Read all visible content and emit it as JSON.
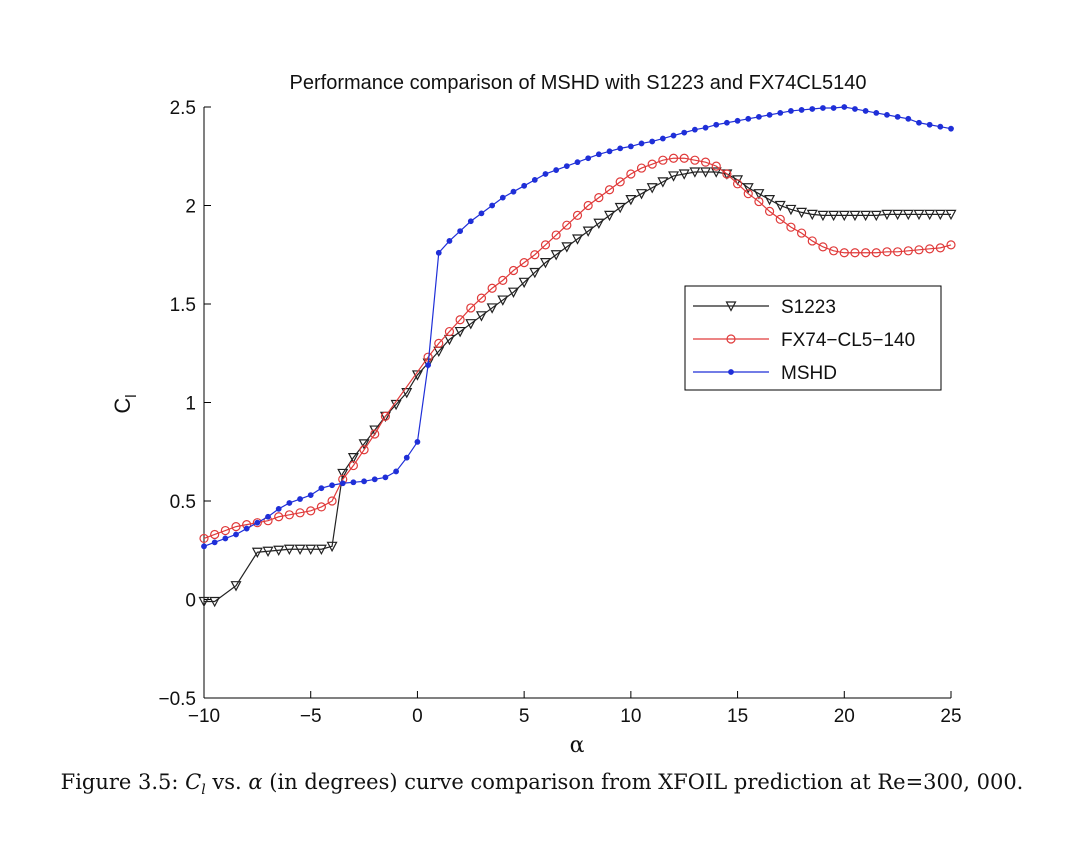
{
  "chart_data": {
    "type": "line",
    "title": "Performance comparison of MSHD with S1223 and FX74CL5140",
    "xlabel": "α",
    "ylabel": "C",
    "ylabel_sub": "l",
    "xlim": [
      -10,
      25
    ],
    "ylim": [
      -0.5,
      2.5
    ],
    "xticks": [
      -10,
      -5,
      0,
      5,
      10,
      15,
      20,
      25
    ],
    "yticks": [
      -0.5,
      0,
      0.5,
      1,
      1.5,
      2,
      2.5
    ],
    "xtick_labels": [
      "−10",
      "−5",
      "0",
      "5",
      "10",
      "15",
      "20",
      "25"
    ],
    "ytick_labels": [
      "−0.5",
      "0",
      "0.5",
      "1",
      "1.5",
      "2",
      "2.5"
    ],
    "grid": false,
    "legend_position": "center-right",
    "series": [
      {
        "name": "S1223",
        "color": "#222222",
        "marker": "triangle-down",
        "x": [
          -10,
          -9.5,
          -8.5,
          -7.5,
          -7,
          -6.5,
          -6,
          -5.5,
          -5,
          -4.5,
          -4,
          -3.5,
          -3,
          -2.5,
          -2,
          -1.5,
          -1,
          -0.5,
          0,
          0.5,
          1,
          1.5,
          2,
          2.5,
          3,
          3.5,
          4,
          4.5,
          5,
          5.5,
          6,
          6.5,
          7,
          7.5,
          8,
          8.5,
          9,
          9.5,
          10,
          10.5,
          11,
          11.5,
          12,
          12.5,
          13,
          13.5,
          14,
          14.5,
          15,
          15.5,
          16,
          16.5,
          17,
          17.5,
          18,
          18.5,
          19,
          19.5,
          20,
          20.5,
          21,
          21.5,
          22,
          22.5,
          23,
          23.5,
          24,
          24.5,
          25
        ],
        "y": [
          -0.01,
          -0.01,
          0.07,
          0.24,
          0.245,
          0.25,
          0.255,
          0.255,
          0.255,
          0.255,
          0.27,
          0.64,
          0.72,
          0.79,
          0.86,
          0.93,
          0.99,
          1.05,
          1.14,
          1.2,
          1.26,
          1.32,
          1.36,
          1.4,
          1.44,
          1.48,
          1.52,
          1.56,
          1.61,
          1.66,
          1.71,
          1.75,
          1.79,
          1.83,
          1.87,
          1.91,
          1.95,
          1.99,
          2.03,
          2.06,
          2.09,
          2.12,
          2.15,
          2.16,
          2.17,
          2.17,
          2.17,
          2.16,
          2.13,
          2.09,
          2.06,
          2.03,
          2.0,
          1.98,
          1.965,
          1.955,
          1.95,
          1.95,
          1.95,
          1.95,
          1.95,
          1.95,
          1.955,
          1.955,
          1.955,
          1.955,
          1.955,
          1.955,
          1.955
        ]
      },
      {
        "name": "FX74−CL5−140",
        "color": "#e03a3a",
        "marker": "circle",
        "x": [
          -10,
          -9.5,
          -9,
          -8.5,
          -8,
          -7.5,
          -7,
          -6.5,
          -6,
          -5.5,
          -5,
          -4.5,
          -4,
          -3.5,
          -3,
          -2.5,
          -2,
          -1.5,
          0.5,
          1,
          1.5,
          2,
          2.5,
          3,
          3.5,
          4,
          4.5,
          5,
          5.5,
          6,
          6.5,
          7,
          7.5,
          8,
          8.5,
          9,
          9.5,
          10,
          10.5,
          11,
          11.5,
          12,
          12.5,
          13,
          13.5,
          14,
          14.5,
          15,
          15.5,
          16,
          16.5,
          17,
          17.5,
          18,
          18.5,
          19,
          19.5,
          20,
          20.5,
          21,
          21.5,
          22,
          22.5,
          23,
          23.5,
          24,
          24.5,
          25
        ],
        "y": [
          0.31,
          0.33,
          0.35,
          0.37,
          0.38,
          0.39,
          0.4,
          0.42,
          0.43,
          0.44,
          0.45,
          0.47,
          0.5,
          0.61,
          0.68,
          0.76,
          0.84,
          0.93,
          1.23,
          1.3,
          1.36,
          1.42,
          1.48,
          1.53,
          1.58,
          1.62,
          1.67,
          1.71,
          1.75,
          1.8,
          1.85,
          1.9,
          1.95,
          2.0,
          2.04,
          2.08,
          2.12,
          2.16,
          2.19,
          2.21,
          2.23,
          2.24,
          2.24,
          2.23,
          2.22,
          2.2,
          2.16,
          2.11,
          2.06,
          2.02,
          1.97,
          1.93,
          1.89,
          1.86,
          1.82,
          1.79,
          1.77,
          1.76,
          1.76,
          1.76,
          1.76,
          1.765,
          1.765,
          1.77,
          1.775,
          1.78,
          1.785,
          1.8
        ]
      },
      {
        "name": "MSHD",
        "color": "#1f2fd8",
        "marker": "dot",
        "x": [
          -10,
          -9.5,
          -9,
          -8.5,
          -8,
          -7.5,
          -7,
          -6.5,
          -6,
          -5.5,
          -5,
          -4.5,
          -4,
          -3.5,
          -3,
          -2.5,
          -2,
          -1.5,
          -1,
          -0.5,
          0,
          0.5,
          1,
          1.5,
          2,
          2.5,
          3,
          3.5,
          4,
          4.5,
          5,
          5.5,
          6,
          6.5,
          7,
          7.5,
          8,
          8.5,
          9,
          9.5,
          10,
          10.5,
          11,
          11.5,
          12,
          12.5,
          13,
          13.5,
          14,
          14.5,
          15,
          15.5,
          16,
          16.5,
          17,
          17.5,
          18,
          18.5,
          19,
          19.5,
          20,
          20.5,
          21,
          21.5,
          22,
          22.5,
          23,
          23.5,
          24,
          24.5,
          25
        ],
        "y": [
          0.27,
          0.29,
          0.31,
          0.33,
          0.36,
          0.39,
          0.42,
          0.46,
          0.49,
          0.51,
          0.53,
          0.565,
          0.58,
          0.59,
          0.595,
          0.6,
          0.61,
          0.62,
          0.65,
          0.72,
          0.8,
          1.19,
          1.76,
          1.82,
          1.87,
          1.92,
          1.96,
          2.0,
          2.04,
          2.07,
          2.1,
          2.13,
          2.16,
          2.18,
          2.2,
          2.22,
          2.24,
          2.26,
          2.275,
          2.29,
          2.3,
          2.315,
          2.325,
          2.34,
          2.355,
          2.37,
          2.385,
          2.395,
          2.41,
          2.42,
          2.43,
          2.44,
          2.45,
          2.46,
          2.47,
          2.48,
          2.485,
          2.49,
          2.495,
          2.495,
          2.5,
          2.49,
          2.48,
          2.47,
          2.46,
          2.45,
          2.44,
          2.42,
          2.41,
          2.4,
          2.39
        ]
      }
    ]
  },
  "caption": {
    "prefix": "Figure 3.5: ",
    "cl_main": "C",
    "cl_sub": "l",
    "middle": " vs. ",
    "alpha": "α",
    "suffix": " (in degrees) curve comparison from XFOIL prediction at Re=300, 000."
  }
}
